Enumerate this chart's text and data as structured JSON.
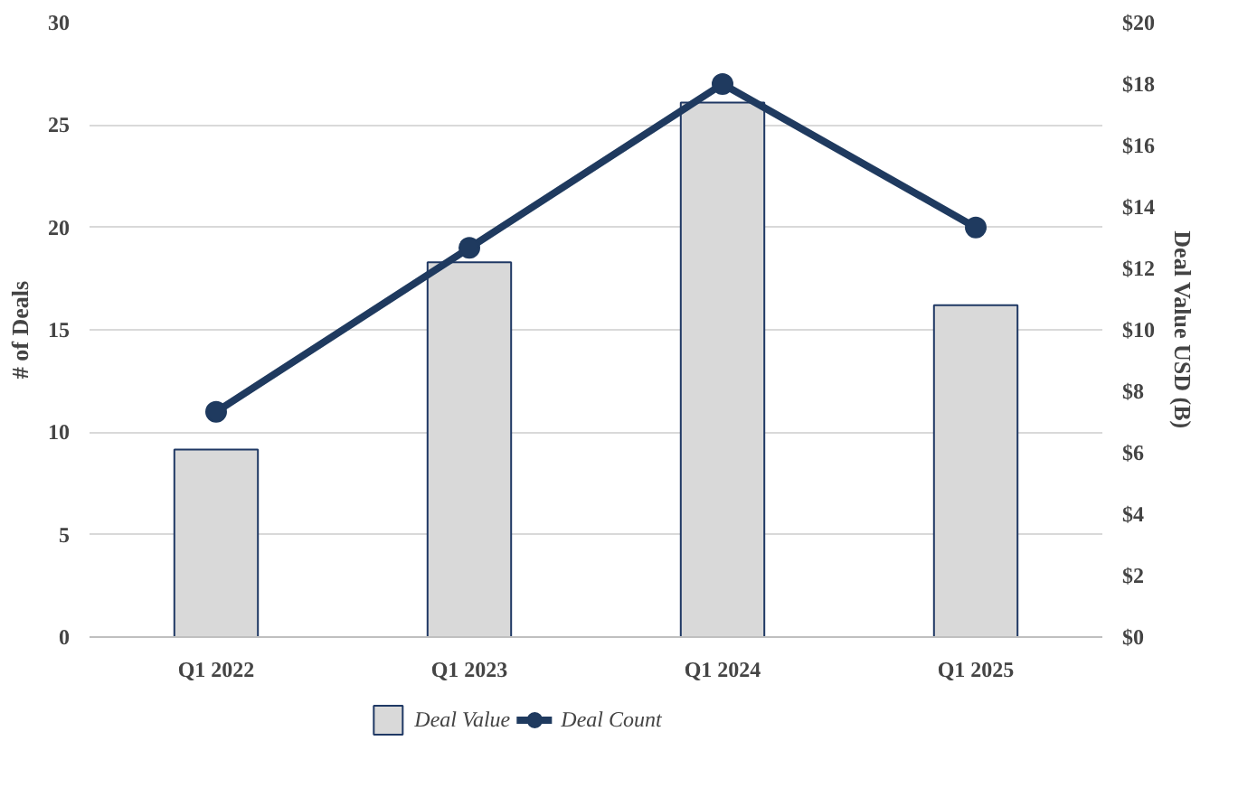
{
  "chart_data": {
    "type": "bar",
    "categories": [
      "Q1 2022",
      "Q1 2023",
      "Q1 2024",
      "Q1 2025"
    ],
    "series": [
      {
        "name": "Deal Value",
        "axis": "y2",
        "color": "#d9d9d9",
        "values": [
          6.1,
          12.2,
          17.4,
          10.8
        ]
      },
      {
        "name": "Deal Count",
        "type": "line",
        "color": "#1f3a5f",
        "values": [
          11,
          19,
          27,
          20
        ],
        "marker": "circle"
      }
    ],
    "ylabel": "# of Deals",
    "y2label": "Deal Value USD (B)",
    "ylim": [
      0,
      30
    ],
    "yticks": [
      0,
      5,
      10,
      15,
      20,
      25,
      30
    ],
    "y2lim": [
      0,
      20
    ],
    "y2ticks": [
      {
        "value": 0,
        "label": "$0"
      },
      {
        "value": 2,
        "label": "$2"
      },
      {
        "value": 4,
        "label": "$4"
      },
      {
        "value": 6,
        "label": "$6"
      },
      {
        "value": 8,
        "label": "$8"
      },
      {
        "value": 10,
        "label": "$10"
      },
      {
        "value": 12,
        "label": "$12"
      },
      {
        "value": 14,
        "label": "$14"
      },
      {
        "value": 16,
        "label": "$16"
      },
      {
        "value": 18,
        "label": "$18"
      },
      {
        "value": 20,
        "label": "$20"
      }
    ],
    "grid": "y",
    "legend": "bottom"
  }
}
